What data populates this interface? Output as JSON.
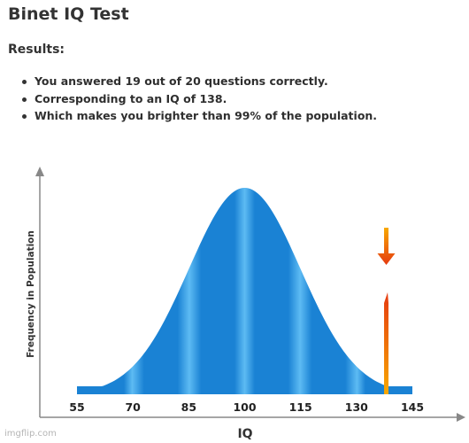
{
  "page": {
    "title": "Binet IQ Test",
    "results_heading": "Results:",
    "results": [
      "You answered 19 out of 20 questions correctly.",
      "Corresponding to an IQ of 138.",
      "Which makes you brighter than 99% of the population."
    ]
  },
  "chart_data": {
    "type": "area",
    "title": "",
    "xlabel": "IQ",
    "ylabel": "Frequency in Population",
    "x_ticks": [
      55,
      70,
      85,
      100,
      115,
      130,
      145
    ],
    "xlim": [
      55,
      145
    ],
    "distribution": {
      "kind": "normal",
      "mean": 100,
      "sd": 15
    },
    "marker": {
      "iq": 138
    },
    "colors": {
      "curve_dark": "#1a82d4",
      "curve_light": "#5dbbf3",
      "axis": "#888888",
      "marker_top": "#e53a10",
      "marker_bottom": "#f8a800"
    }
  },
  "watermark": "imgflip.com"
}
